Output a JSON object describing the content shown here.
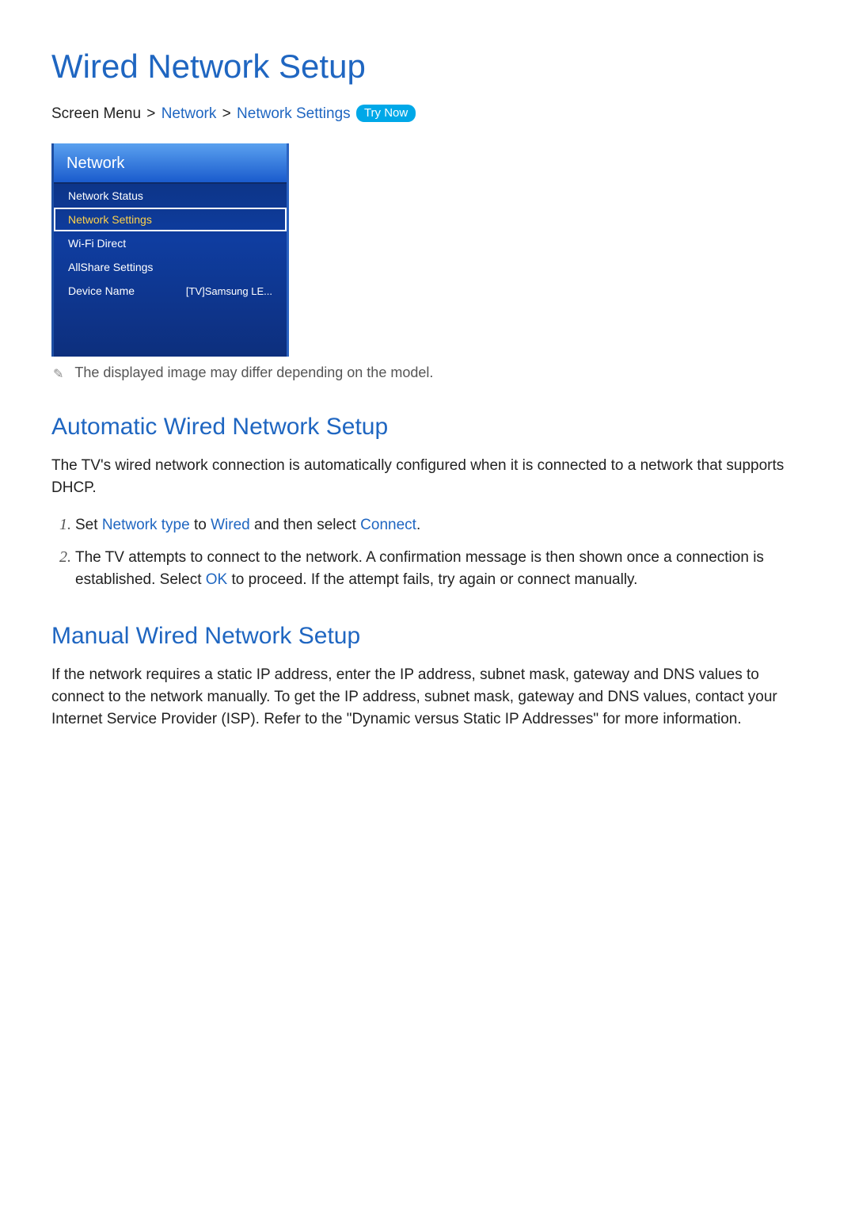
{
  "page": {
    "h1": "Wired Network Setup"
  },
  "breadcrumb": {
    "prefix": "Screen Menu",
    "sep": ">",
    "part1": "Network",
    "part2": "Network Settings",
    "pill": "Try Now"
  },
  "menu": {
    "header": "Network",
    "items": [
      {
        "label": "Network Status",
        "value": "",
        "selected": false
      },
      {
        "label": "Network Settings",
        "value": "",
        "selected": true
      },
      {
        "label": "Wi-Fi Direct",
        "value": "",
        "selected": false
      },
      {
        "label": "AllShare Settings",
        "value": "",
        "selected": false
      },
      {
        "label": "Device Name",
        "value": "[TV]Samsung LE...",
        "selected": false
      }
    ]
  },
  "note": {
    "text": "The displayed image may differ depending on the model."
  },
  "auto": {
    "h2": "Automatic Wired Network Setup",
    "intro": "The TV's wired network connection is automatically configured when it is connected to a network that supports DHCP.",
    "step1": {
      "pre": "Set ",
      "kw1": "Network type",
      "mid1": " to ",
      "kw2": "Wired",
      "mid2": " and then select ",
      "kw3": "Connect",
      "post": "."
    },
    "step2": {
      "pre": "The TV attempts to connect to the network. A confirmation message is then shown once a connection is established. Select ",
      "kw1": "OK",
      "post": " to proceed. If the attempt fails, try again or connect manually."
    }
  },
  "manual": {
    "h2": "Manual Wired Network Setup",
    "body": "If the network requires a static IP address, enter the IP address, subnet mask, gateway and DNS values to connect to the network manually. To get the IP address, subnet mask, gateway and DNS values, contact your Internet Service Provider (ISP). Refer to the \"Dynamic versus Static IP Addresses\" for more information."
  },
  "colors": {
    "heading": "#1f66c1",
    "pill_bg": "#00a8e8",
    "menu_grad_top": "#5aa1ef",
    "menu_grad_bot": "#1a5bcd",
    "menu_bg_top": "#0b2f77",
    "menu_bg_mid": "#0f3da0",
    "menu_selected_text": "#ffd24a"
  }
}
